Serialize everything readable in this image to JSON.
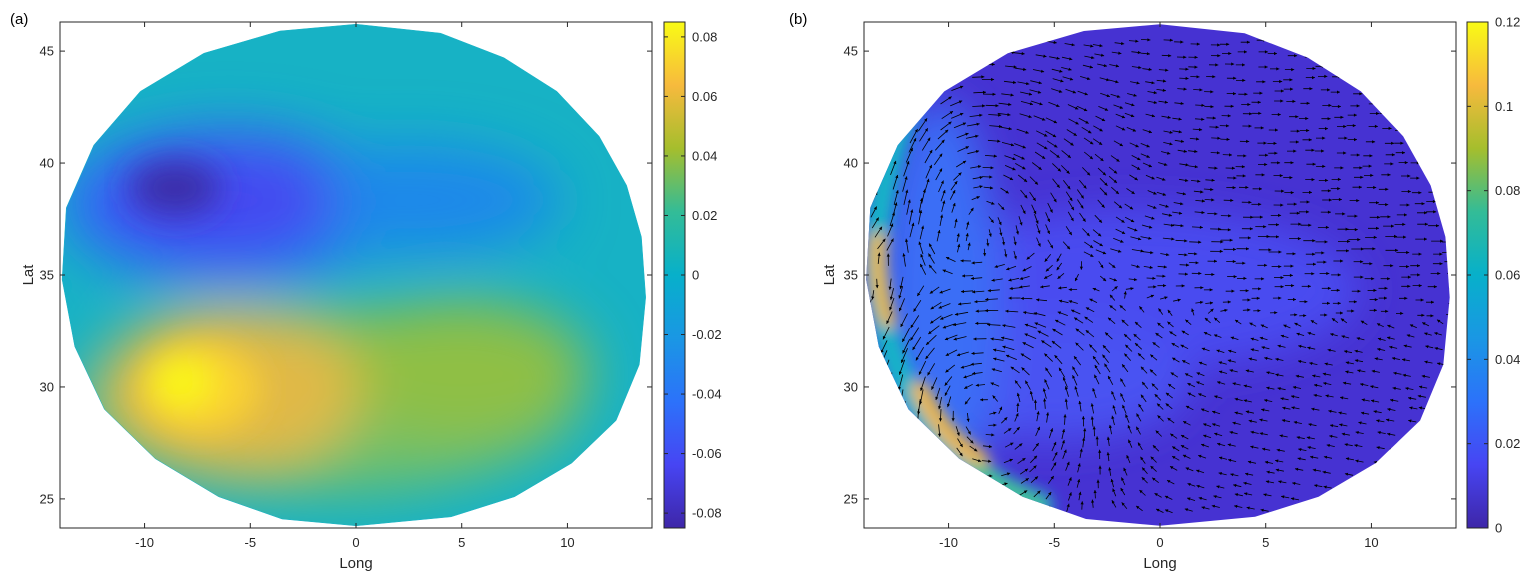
{
  "chart_data": [
    {
      "panel_label": "(a)",
      "type": "heatmap",
      "xlabel": "Long",
      "ylabel": "Lat",
      "xlim": [
        -14,
        14
      ],
      "ylim": [
        23.7,
        46.3
      ],
      "xticks": [
        -10,
        -5,
        0,
        5,
        10
      ],
      "yticks": [
        25,
        30,
        35,
        40,
        45
      ],
      "colorbar": {
        "colormap": "parula",
        "clim": [
          -0.085,
          0.085
        ],
        "ticks": [
          0.08,
          0.06,
          0.04,
          0.02,
          0,
          -0.02,
          -0.04,
          -0.06,
          -0.08
        ],
        "tick_labels": [
          "0.08",
          "0.06",
          "0.04",
          "0.02",
          "0",
          "-0.02",
          "-0.04",
          "-0.06",
          "-0.08"
        ]
      },
      "features": [
        {
          "kind": "minimum",
          "long": -8.5,
          "lat": 38.7,
          "value": -0.083
        },
        {
          "kind": "maximum",
          "long": -8,
          "lat": 30.3,
          "value": 0.085
        }
      ],
      "grid": false,
      "legend": "none"
    },
    {
      "panel_label": "(b)",
      "type": "heatmap",
      "overlay": "velocity quiver arrows",
      "xlabel": "Long",
      "ylabel": "Lat",
      "xlim": [
        -14,
        14
      ],
      "ylim": [
        23.7,
        46.3
      ],
      "xticks": [
        -10,
        -5,
        0,
        5,
        10
      ],
      "yticks": [
        25,
        30,
        35,
        40,
        45
      ],
      "colorbar": {
        "colormap": "parula",
        "clim": [
          0,
          0.12
        ],
        "ticks": [
          0.12,
          0.1,
          0.08,
          0.06,
          0.04,
          0.02,
          0
        ],
        "tick_labels": [
          "0.12",
          "0.1",
          "0.08",
          "0.06",
          "0.04",
          "0.02",
          "0"
        ]
      },
      "features": [
        {
          "kind": "western boundary current maximum",
          "long": -10,
          "lat": 28.5,
          "value": 0.11
        },
        {
          "kind": "gyre center",
          "long": -8.5,
          "lat": 38.5
        },
        {
          "kind": "gyre center",
          "long": -8,
          "lat": 30
        }
      ],
      "grid": false,
      "legend": "none"
    }
  ]
}
